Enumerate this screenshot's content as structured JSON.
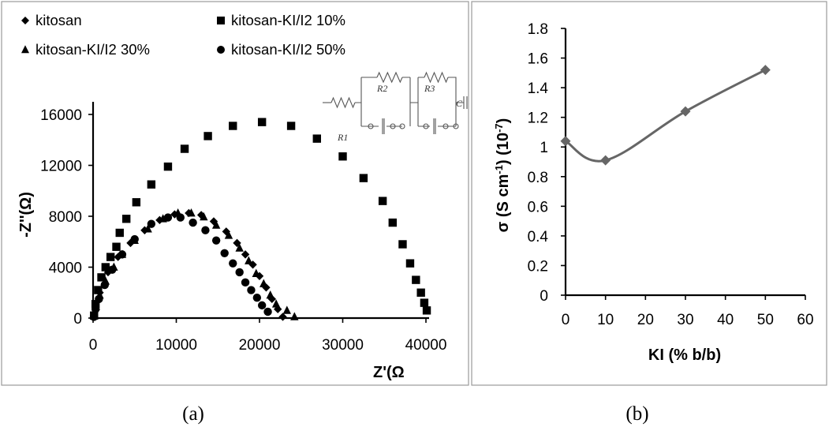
{
  "chart_data": [
    {
      "type": "scatter",
      "panel_label": "(a)",
      "xlabel": "Z'(Ω",
      "ylabel": "-Z''(Ω)",
      "xlim": [
        0,
        40000
      ],
      "ylim": [
        0,
        16000
      ],
      "xticks": [
        "0",
        "10000",
        "20000",
        "30000",
        "40000"
      ],
      "yticks": [
        "0",
        "4000",
        "8000",
        "12000",
        "16000"
      ],
      "legend_position": "top-left",
      "series": [
        {
          "name": "kitosan",
          "marker": "diamond",
          "points": [
            [
              100,
              150
            ],
            [
              300,
              800
            ],
            [
              800,
              2000
            ],
            [
              1800,
              3600
            ],
            [
              3000,
              4800
            ],
            [
              4500,
              5900
            ],
            [
              6200,
              6900
            ],
            [
              8000,
              7700
            ],
            [
              9800,
              8150
            ],
            [
              11500,
              8250
            ],
            [
              13000,
              8100
            ],
            [
              14500,
              7600
            ],
            [
              16000,
              6800
            ],
            [
              17300,
              5900
            ],
            [
              18300,
              5000
            ],
            [
              19200,
              4200
            ],
            [
              20000,
              3300
            ],
            [
              20800,
              2400
            ],
            [
              21500,
              1500
            ],
            [
              22200,
              700
            ],
            [
              22800,
              100
            ]
          ]
        },
        {
          "name": "kitosan-KI/I2 10%",
          "marker": "square",
          "points": [
            [
              120,
              200
            ],
            [
              300,
              1100
            ],
            [
              600,
              2200
            ],
            [
              1000,
              3200
            ],
            [
              1500,
              4000
            ],
            [
              2100,
              4800
            ],
            [
              2800,
              5600
            ],
            [
              3200,
              6700
            ],
            [
              4000,
              7800
            ],
            [
              5200,
              9100
            ],
            [
              7000,
              10500
            ],
            [
              9000,
              11900
            ],
            [
              11000,
              13300
            ],
            [
              13800,
              14300
            ],
            [
              16800,
              15100
            ],
            [
              20300,
              15400
            ],
            [
              23800,
              15100
            ],
            [
              26900,
              14100
            ],
            [
              30000,
              12700
            ],
            [
              32500,
              11000
            ],
            [
              34800,
              9200
            ],
            [
              36000,
              7500
            ],
            [
              37200,
              5800
            ],
            [
              38100,
              4300
            ],
            [
              38800,
              3000
            ],
            [
              39400,
              2000
            ],
            [
              39800,
              1200
            ],
            [
              40100,
              600
            ]
          ]
        },
        {
          "name": "kitosan-KI/I2 30%",
          "marker": "triangle",
          "points": [
            [
              120,
              200
            ],
            [
              350,
              900
            ],
            [
              800,
              1800
            ],
            [
              1500,
              2900
            ],
            [
              2500,
              4000
            ],
            [
              3500,
              5000
            ],
            [
              5000,
              6100
            ],
            [
              6600,
              7000
            ],
            [
              8400,
              7800
            ],
            [
              10200,
              8250
            ],
            [
              11800,
              8250
            ],
            [
              13300,
              7950
            ],
            [
              14800,
              7300
            ],
            [
              16300,
              6500
            ],
            [
              17600,
              5500
            ],
            [
              18700,
              4500
            ],
            [
              19600,
              3500
            ],
            [
              20500,
              2700
            ],
            [
              21300,
              1800
            ],
            [
              22000,
              1100
            ],
            [
              23300,
              600
            ],
            [
              24200,
              100
            ]
          ]
        },
        {
          "name": "kitosan-KI/I2 50%",
          "marker": "circle",
          "points": [
            [
              100,
              100
            ],
            [
              300,
              700
            ],
            [
              700,
              1500
            ],
            [
              1400,
              2600
            ],
            [
              2300,
              3800
            ],
            [
              3500,
              5000
            ],
            [
              5000,
              6200
            ],
            [
              7000,
              7400
            ],
            [
              9000,
              7900
            ],
            [
              10500,
              7900
            ],
            [
              12000,
              7500
            ],
            [
              13500,
              6900
            ],
            [
              14800,
              6100
            ],
            [
              15800,
              5100
            ],
            [
              16800,
              4300
            ],
            [
              17600,
              3600
            ],
            [
              18300,
              2800
            ],
            [
              19000,
              2200
            ],
            [
              19700,
              1600
            ],
            [
              20300,
              1000
            ],
            [
              21000,
              500
            ]
          ]
        }
      ],
      "inset": {
        "type": "equivalent-circuit",
        "labels": [
          "R1",
          "R2",
          "R3",
          "C"
        ]
      }
    },
    {
      "type": "line",
      "panel_label": "(b)",
      "xlabel": "KI (% b/b)",
      "ylabel_main": "σ (S cm",
      "ylabel_sup1": "-1",
      "ylabel_mid": ") (10",
      "ylabel_sup2": "-7",
      "ylabel_end": ")",
      "xlim": [
        0,
        60
      ],
      "ylim": [
        0,
        1.8
      ],
      "xticks": [
        "0",
        "10",
        "20",
        "30",
        "40",
        "50",
        "60"
      ],
      "yticks": [
        "0",
        "0.2",
        "0.4",
        "0.6",
        "0.8",
        "1",
        "1.2",
        "1.4",
        "1.6",
        "1.8"
      ],
      "x": [
        0,
        10,
        30,
        50
      ],
      "y": [
        1.04,
        0.91,
        1.24,
        1.52
      ],
      "color": "#666666"
    }
  ]
}
